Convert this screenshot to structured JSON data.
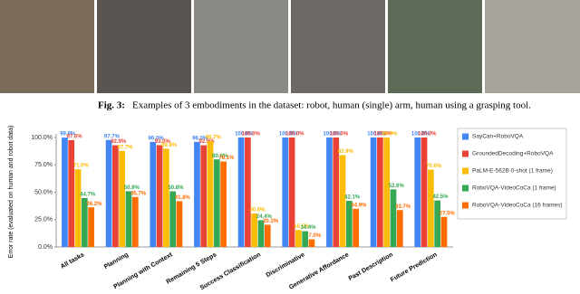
{
  "caption": {
    "label": "Fig. 3:",
    "text": "Examples of 3 embodiments in the dataset: robot, human (single) arm, human using a grasping tool."
  },
  "chart_data": {
    "type": "bar",
    "ylabel": "Error rate (evaluated on human and robot data)",
    "categories": [
      "All tasks",
      "Planning",
      "Planning with Context",
      "Remaining 5 Steps",
      "Success Classification",
      "Discriminative",
      "Generative Affordance",
      "Past Description",
      "Future Prediction"
    ],
    "ylim": [
      0,
      100
    ],
    "yticks": [
      {
        "value": 0,
        "label": "0.0%"
      },
      {
        "value": 25,
        "label": "25.0%"
      },
      {
        "value": 50,
        "label": "50.0%"
      },
      {
        "value": 75,
        "label": "75.0%"
      },
      {
        "value": 100,
        "label": "100.0%"
      }
    ],
    "series": [
      {
        "name": "SayCan+RoboVQA",
        "color": "#4285f4",
        "values": [
          99.9,
          97.7,
          96.0,
          96.0,
          100.0,
          100.0,
          100.0,
          100.0,
          100.0
        ],
        "value_labels": [
          "99.9%",
          "97.7%",
          "96.0%",
          "96.0%",
          "100.0%",
          "100.0%",
          "100.0%",
          "100.0%",
          "100.0%"
        ]
      },
      {
        "name": "GroundedDecoding+RoboVQA",
        "color": "#ea4335",
        "values": [
          97.6,
          92.9,
          93.0,
          92.9,
          100.0,
          100.0,
          100.0,
          100.0,
          100.0
        ],
        "value_labels": [
          "97.6%",
          "92.9%",
          "93.0%",
          "92.9%",
          "100.0%",
          "100.0%",
          "100.0%",
          "100.0%",
          "100.0%"
        ]
      },
      {
        "name": "PaLM-E-562B 0-shot (1 frame)",
        "color": "#fbbc04",
        "values": [
          71.0,
          87.7,
          89.8,
          96.7,
          30.6,
          15.5,
          83.9,
          99.9,
          70.6
        ],
        "value_labels": [
          "71.0%",
          "87.7%",
          "89.8%",
          "96.7%",
          "30.6%",
          "15.5%",
          "83.9%",
          "99.9%",
          "70.6%"
        ]
      },
      {
        "name": "RoboVQA-VideoCoCa (1 frame)",
        "color": "#34a853",
        "values": [
          44.7,
          50.9,
          50.8,
          80.0,
          24.4,
          14.4,
          42.1,
          52.6,
          42.5
        ],
        "value_labels": [
          "44.7%",
          "50.9%",
          "50.8%",
          "80.0%",
          "24.4%",
          "14.4%",
          "42.1%",
          "52.6%",
          "42.5%"
        ]
      },
      {
        "name": "RoboVQA-VideoCoCa (16 frames)",
        "color": "#ff6d01",
        "values": [
          36.2,
          45.7,
          41.8,
          78.1,
          20.3,
          7.0,
          34.9,
          33.7,
          27.5
        ],
        "value_labels": [
          "36.2%",
          "45.7%",
          "41.8%",
          "78.1%",
          "20.3%",
          "7.0%",
          "34.9%",
          "33.7%",
          "27.5%"
        ]
      }
    ],
    "grid": false,
    "legend": "right"
  }
}
